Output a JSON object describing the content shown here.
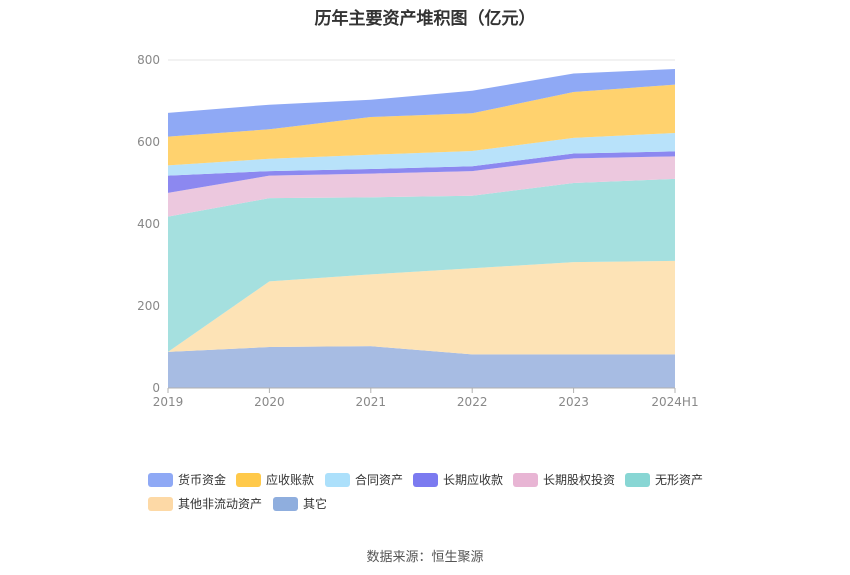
{
  "title": "历年主要资产堆积图（亿元）",
  "source": "数据来源：恒生聚源",
  "chart_data": {
    "type": "area",
    "stacked": true,
    "categories": [
      "2019",
      "2020",
      "2021",
      "2022",
      "2023",
      "2024H1"
    ],
    "ylim": [
      0,
      800
    ],
    "yticks": [
      0,
      200,
      400,
      600,
      800
    ],
    "grid": true,
    "legend_position": "bottom",
    "series": [
      {
        "name": "货币资金",
        "color": "#8fa9f5",
        "values": [
          58,
          60,
          42,
          55,
          45,
          38
        ]
      },
      {
        "name": "应收账款",
        "color": "#ffd26e",
        "values": [
          70,
          72,
          92,
          92,
          112,
          118
        ]
      },
      {
        "name": "合同资产",
        "color": "#b8e2fa",
        "values": [
          25,
          30,
          35,
          37,
          38,
          45
        ]
      },
      {
        "name": "长期应收款",
        "color": "#8c88f0",
        "values": [
          42,
          11,
          11,
          12,
          12,
          12
        ]
      },
      {
        "name": "长期股权投资",
        "color": "#ecc8de",
        "values": [
          58,
          55,
          58,
          60,
          60,
          55
        ]
      },
      {
        "name": "无形资产",
        "color": "#a5e0df",
        "values": [
          330,
          203,
          188,
          177,
          193,
          200
        ]
      },
      {
        "name": "其他非流动资产",
        "color": "#fde3b6",
        "values": [
          0,
          160,
          175,
          210,
          225,
          228
        ]
      },
      {
        "name": "其它",
        "color": "#a7bce3",
        "values": [
          88,
          100,
          102,
          82,
          82,
          82
        ]
      }
    ],
    "legend_colors": [
      "#8fa9f5",
      "#ffc94a",
      "#ace0fb",
      "#7b7af0",
      "#e8b5d4",
      "#88d6d4",
      "#fdd9a6",
      "#8faede"
    ]
  }
}
